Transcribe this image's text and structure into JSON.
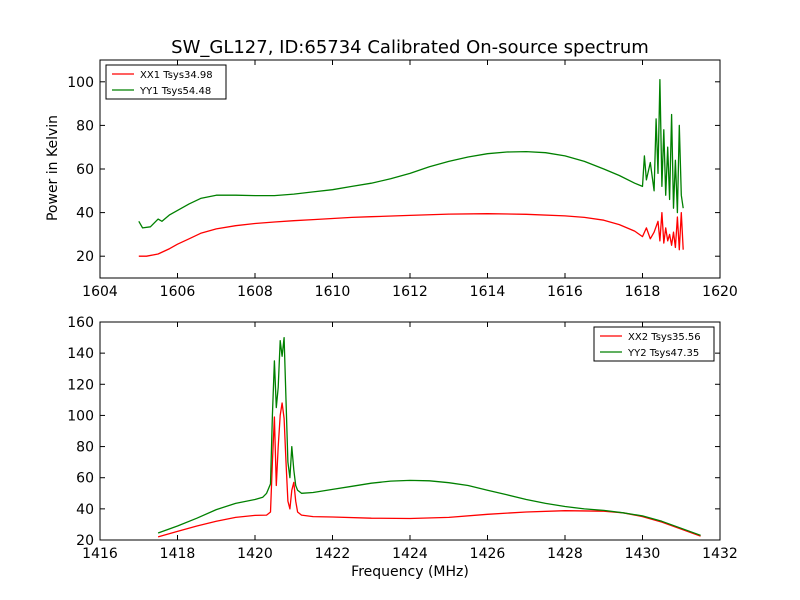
{
  "chart_data": [
    {
      "type": "line",
      "title": "SW_GL127, ID:65734 Calibrated On-source spectrum",
      "xlabel": "",
      "ylabel": "Power in Kelvin",
      "xlim": [
        1604,
        1620
      ],
      "ylim": [
        10,
        110
      ],
      "xticks": [
        "1604",
        "1606",
        "1608",
        "1610",
        "1612",
        "1614",
        "1616",
        "1618",
        "1620"
      ],
      "yticks": [
        "20",
        "40",
        "60",
        "80",
        "100"
      ],
      "legend_position": "top-left",
      "grid": false,
      "series": [
        {
          "name": "XX1 Tsys34.98",
          "color": "#ff0000",
          "x": [
            1605.0,
            1605.2,
            1605.5,
            1605.8,
            1606.0,
            1606.3,
            1606.6,
            1607.0,
            1607.5,
            1608.0,
            1608.5,
            1609.0,
            1609.5,
            1610.0,
            1610.5,
            1611.0,
            1612.0,
            1613.0,
            1614.0,
            1615.0,
            1616.0,
            1616.5,
            1617.0,
            1617.4,
            1617.8,
            1618.0,
            1618.1,
            1618.2,
            1618.3,
            1618.4,
            1618.45,
            1618.5,
            1618.55,
            1618.6,
            1618.65,
            1618.7,
            1618.75,
            1618.8,
            1618.85,
            1618.9,
            1618.95,
            1619.0,
            1619.05
          ],
          "values": [
            20,
            20,
            21,
            23.5,
            25.5,
            28,
            30.5,
            32.5,
            34,
            35,
            35.7,
            36.3,
            36.8,
            37.3,
            37.8,
            38.1,
            38.7,
            39.3,
            39.5,
            39.2,
            38.5,
            37.8,
            36.5,
            34.5,
            31.5,
            29,
            33,
            28,
            31,
            36,
            27,
            40,
            26,
            33,
            27,
            30,
            25,
            31,
            24,
            38,
            23,
            40,
            23
          ]
        },
        {
          "name": "YY1 Tsys54.48",
          "color": "#008000",
          "x": [
            1605.0,
            1605.1,
            1605.3,
            1605.5,
            1605.6,
            1605.8,
            1606.0,
            1606.3,
            1606.6,
            1607.0,
            1607.5,
            1608.0,
            1608.5,
            1609.0,
            1609.5,
            1610.0,
            1610.5,
            1611.0,
            1611.5,
            1612.0,
            1612.5,
            1613.0,
            1613.5,
            1614.0,
            1614.5,
            1615.0,
            1615.5,
            1616.0,
            1616.5,
            1617.0,
            1617.4,
            1617.8,
            1618.0,
            1618.05,
            1618.1,
            1618.2,
            1618.3,
            1618.35,
            1618.4,
            1618.45,
            1618.5,
            1618.55,
            1618.6,
            1618.65,
            1618.7,
            1618.75,
            1618.8,
            1618.85,
            1618.9,
            1618.95,
            1619.0,
            1619.05
          ],
          "values": [
            36,
            33,
            33.5,
            37,
            36,
            39,
            41,
            44,
            46.5,
            48,
            48,
            47.8,
            47.8,
            48.5,
            49.5,
            50.5,
            52,
            53.5,
            55.5,
            58,
            61,
            63.5,
            65.5,
            67,
            67.8,
            68,
            67.5,
            66,
            63.5,
            60,
            57,
            53.5,
            52,
            66,
            55,
            63,
            50,
            83,
            58,
            101,
            52,
            78,
            48,
            70,
            46,
            85,
            42,
            64,
            40,
            80,
            48,
            42
          ]
        }
      ]
    },
    {
      "type": "line",
      "title": "",
      "xlabel": "Frequency (MHz)",
      "ylabel": "",
      "xlim": [
        1416,
        1432
      ],
      "ylim": [
        20,
        160
      ],
      "xticks": [
        "1416",
        "1418",
        "1420",
        "1422",
        "1424",
        "1426",
        "1428",
        "1430",
        "1432"
      ],
      "yticks": [
        "20",
        "40",
        "60",
        "80",
        "100",
        "120",
        "140",
        "160"
      ],
      "legend_position": "top-right",
      "grid": false,
      "series": [
        {
          "name": "XX2 Tsys35.56",
          "color": "#ff0000",
          "x": [
            1417.5,
            1418.0,
            1418.5,
            1419.0,
            1419.5,
            1420.0,
            1420.3,
            1420.4,
            1420.45,
            1420.5,
            1420.55,
            1420.6,
            1420.65,
            1420.7,
            1420.75,
            1420.8,
            1420.85,
            1420.9,
            1420.95,
            1421.0,
            1421.05,
            1421.1,
            1421.2,
            1421.5,
            1422.0,
            1423.0,
            1424.0,
            1425.0,
            1426.0,
            1427.0,
            1428.0,
            1429.0,
            1429.5,
            1430.0,
            1430.5,
            1431.0,
            1431.5
          ],
          "values": [
            22,
            25.5,
            29,
            32,
            34.5,
            35.8,
            36,
            38,
            70,
            99,
            55,
            80,
            100,
            108,
            98,
            70,
            45,
            40,
            52,
            57,
            45,
            38,
            36,
            35,
            34.8,
            34,
            33.8,
            34.5,
            36.5,
            38,
            38.8,
            38.5,
            37.5,
            35,
            31.5,
            27,
            22.5
          ]
        },
        {
          "name": "YY2 Tsys47.35",
          "color": "#008000",
          "x": [
            1417.5,
            1418.0,
            1418.5,
            1419.0,
            1419.5,
            1420.0,
            1420.2,
            1420.3,
            1420.4,
            1420.45,
            1420.5,
            1420.55,
            1420.6,
            1420.65,
            1420.7,
            1420.75,
            1420.8,
            1420.85,
            1420.9,
            1420.95,
            1421.0,
            1421.05,
            1421.1,
            1421.2,
            1421.5,
            1422.0,
            1422.5,
            1423.0,
            1423.5,
            1424.0,
            1424.5,
            1425.0,
            1425.5,
            1426.0,
            1426.5,
            1427.0,
            1427.5,
            1428.0,
            1428.5,
            1429.0,
            1429.5,
            1430.0,
            1430.5,
            1431.0,
            1431.5
          ],
          "values": [
            24.5,
            29,
            34,
            39.5,
            43.5,
            46,
            47.5,
            50,
            56,
            100,
            135,
            105,
            118,
            148,
            138,
            150,
            110,
            70,
            60,
            80,
            65,
            55,
            52,
            50,
            50.5,
            52.5,
            54.5,
            56.5,
            57.8,
            58.3,
            58,
            56.8,
            55,
            52,
            49,
            46,
            43.5,
            41.5,
            40,
            39,
            37.5,
            35.5,
            32,
            27.5,
            23
          ]
        }
      ]
    }
  ]
}
